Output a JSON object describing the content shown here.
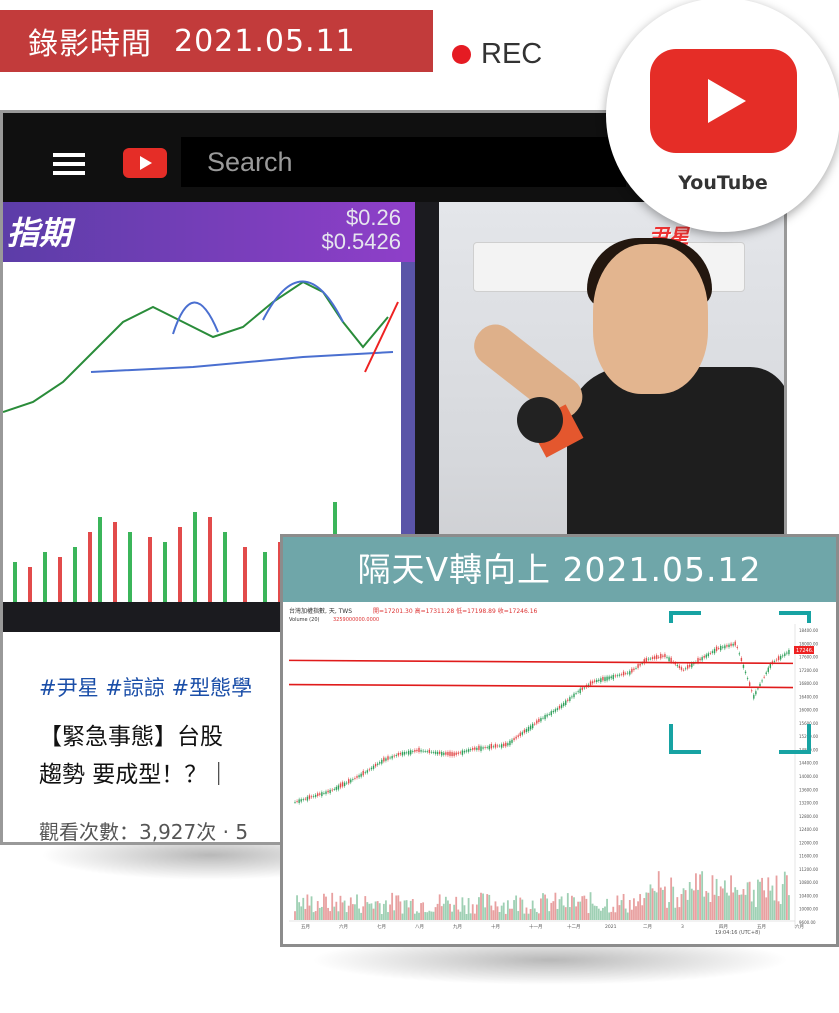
{
  "banner": {
    "label": "錄影時間",
    "date": "2021.05.11"
  },
  "rec": {
    "label": "REC",
    "color": "#e51b23"
  },
  "youtube_badge": {
    "label": "YouTube",
    "color": "#e52d27"
  },
  "browser": {
    "search_placeholder": "Search",
    "board_title": "指期",
    "board_prices": [
      "$0.26",
      "$0.5426"
    ],
    "tags": "#尹星 #諒諒 #型態學",
    "video_title_line1": "【緊急事態】台股",
    "video_title_line2": "趨勢 要成型！？｜",
    "views": "觀看次數：3,927次 · 5"
  },
  "card": {
    "title": "隔天V轉向上 2021.05.12",
    "header_color": "#6fa6a9",
    "chart_header": "台灣加權指數, 天, TWS",
    "chart_quotes": "開=17201.30  高=17311.28  低=17198.89  收=17246.16",
    "volume_label": "Volume (20)",
    "volume_value": "3259000000.0000",
    "timestamp": "19:04:16 (UTC+8)",
    "price_tag": "17246.16"
  },
  "chart_data": {
    "type": "line",
    "title": "台灣加權指數",
    "x_labels": [
      "五月",
      "六月",
      "七月",
      "八月",
      "九月",
      "十月",
      "十一月",
      "十二月",
      "2021",
      "二月",
      "3",
      "四月",
      "五月",
      "六月"
    ],
    "y_ticks": [
      "18400.00",
      "18000.00",
      "17600.00",
      "17200.00",
      "16800.00",
      "16400.00",
      "16000.00",
      "15600.00",
      "15200.00",
      "14800.00",
      "14400.00",
      "14000.00",
      "13600.00",
      "13200.00",
      "12800.00",
      "12400.00",
      "12000.00",
      "11600.00",
      "11200.00",
      "10800.00",
      "10400.00",
      "10000.00",
      "9600.00"
    ],
    "ylim": [
      9400,
      18500
    ],
    "series": [
      {
        "values": [
          10400,
          10650,
          10900,
          11300,
          11750,
          12300,
          12600,
          12750,
          12650,
          12550,
          12800,
          12900,
          13000,
          13600,
          14200,
          14700,
          15400,
          15900,
          16100,
          16300,
          16900,
          17050,
          16400,
          16900,
          17400,
          17600,
          15200,
          16700,
          17246
        ]
      }
    ],
    "support_lines": [
      16800,
      15700
    ]
  }
}
